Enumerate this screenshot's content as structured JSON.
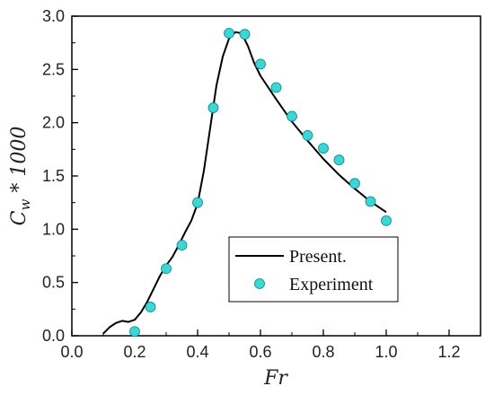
{
  "chart_data": {
    "type": "line",
    "xlabel": "Fr",
    "ylabel": "C_w * 1000",
    "xlim": [
      0.0,
      1.3
    ],
    "ylim": [
      0.0,
      3.0
    ],
    "x_ticks": [
      "0.0",
      "0.2",
      "0.4",
      "0.6",
      "0.8",
      "1.0",
      "1.2"
    ],
    "y_ticks": [
      "0.0",
      "0.5",
      "1.0",
      "1.5",
      "2.0",
      "2.5",
      "3.0"
    ],
    "grid": false,
    "legend_position": "bottom-right",
    "series": [
      {
        "name": "Present.",
        "kind": "line",
        "color": "#000000",
        "x": [
          0.1,
          0.12,
          0.14,
          0.16,
          0.18,
          0.2,
          0.22,
          0.24,
          0.26,
          0.28,
          0.3,
          0.32,
          0.34,
          0.36,
          0.38,
          0.4,
          0.42,
          0.44,
          0.46,
          0.48,
          0.5,
          0.52,
          0.54,
          0.56,
          0.58,
          0.6,
          0.65,
          0.7,
          0.75,
          0.8,
          0.85,
          0.9,
          0.95,
          1.0
        ],
        "y": [
          0.02,
          0.08,
          0.12,
          0.14,
          0.13,
          0.15,
          0.22,
          0.32,
          0.44,
          0.56,
          0.66,
          0.74,
          0.85,
          0.97,
          1.08,
          1.24,
          1.55,
          1.95,
          2.35,
          2.62,
          2.79,
          2.85,
          2.84,
          2.72,
          2.56,
          2.44,
          2.22,
          2.01,
          1.83,
          1.66,
          1.51,
          1.38,
          1.26,
          1.16
        ]
      },
      {
        "name": "Experiment",
        "kind": "scatter",
        "color": "#33dada",
        "x": [
          0.2,
          0.25,
          0.3,
          0.35,
          0.4,
          0.45,
          0.5,
          0.55,
          0.6,
          0.65,
          0.7,
          0.75,
          0.8,
          0.85,
          0.9,
          0.95,
          1.0
        ],
        "y": [
          0.04,
          0.27,
          0.63,
          0.85,
          1.25,
          2.14,
          2.84,
          2.83,
          2.55,
          2.33,
          2.06,
          1.88,
          1.76,
          1.65,
          1.43,
          1.26,
          1.08
        ]
      }
    ]
  }
}
